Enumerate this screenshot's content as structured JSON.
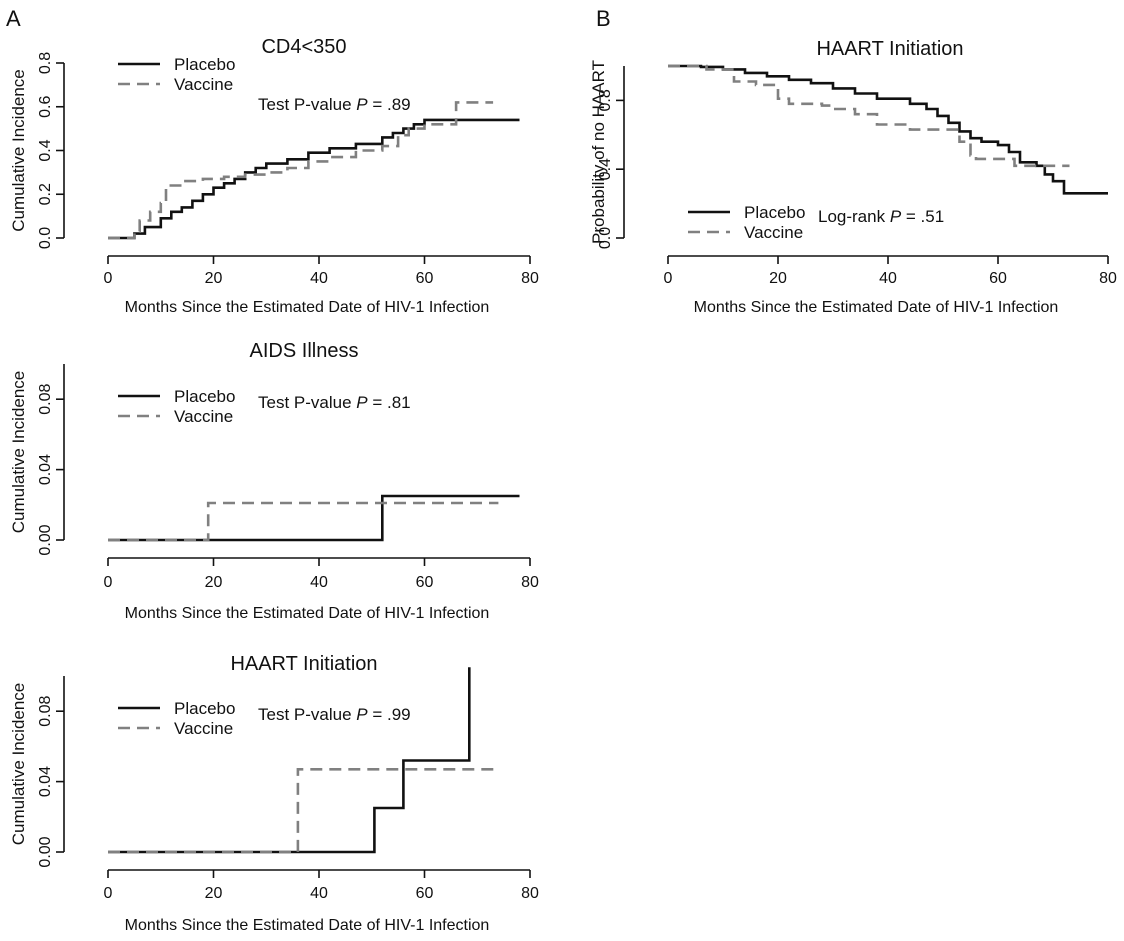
{
  "panel_labels": {
    "a": "A",
    "b": "B"
  },
  "styles": {
    "Placebo": {
      "color": "#111111",
      "dash": ""
    },
    "Vaccine": {
      "color": "#808080",
      "dash": "12,7"
    }
  },
  "chart_data": [
    {
      "id": "cd4",
      "panel": "A",
      "type": "line",
      "step": true,
      "title": "CD4<350",
      "xlabel": "Months Since the Estimated Date of HIV-1 Infection",
      "ylabel": "Cumulative Incidence",
      "xlim": [
        0,
        80
      ],
      "ylim": [
        0,
        0.8
      ],
      "xticks": [
        0,
        20,
        40,
        60,
        80
      ],
      "yticks": [
        0.0,
        0.2,
        0.4,
        0.6,
        0.8
      ],
      "ytick_labels": [
        "0.0",
        "0.2",
        "0.4",
        "0.6",
        "0.8"
      ],
      "legend": [
        "Placebo",
        "Vaccine"
      ],
      "annotation_prefix": "Test P-value ",
      "annotation_p": "P",
      "annotation_value": " = .89",
      "series": [
        {
          "name": "Placebo",
          "x": [
            0,
            5,
            7,
            10,
            12,
            14,
            16,
            18,
            20,
            22,
            24,
            26,
            28,
            30,
            34,
            38,
            42,
            47,
            52,
            54,
            56,
            58,
            60,
            78
          ],
          "y": [
            0,
            0.02,
            0.05,
            0.09,
            0.12,
            0.14,
            0.17,
            0.2,
            0.23,
            0.25,
            0.27,
            0.3,
            0.32,
            0.34,
            0.36,
            0.39,
            0.41,
            0.43,
            0.46,
            0.48,
            0.5,
            0.52,
            0.54,
            0.54
          ]
        },
        {
          "name": "Vaccine",
          "x": [
            0,
            5,
            6,
            8,
            10,
            11,
            14,
            18,
            22,
            26,
            30,
            34,
            38,
            42,
            47,
            52,
            55,
            57,
            60,
            66,
            73
          ],
          "y": [
            0,
            0.03,
            0.08,
            0.12,
            0.16,
            0.24,
            0.26,
            0.27,
            0.28,
            0.29,
            0.3,
            0.32,
            0.35,
            0.37,
            0.4,
            0.42,
            0.47,
            0.5,
            0.52,
            0.62,
            0.62
          ]
        }
      ]
    },
    {
      "id": "aids",
      "panel": "A",
      "type": "line",
      "step": true,
      "title": "AIDS Illness",
      "xlabel": "Months Since the Estimated Date of HIV-1 Infection",
      "ylabel": "Cumulative Incidence",
      "xlim": [
        0,
        80
      ],
      "ylim": [
        0,
        0.1
      ],
      "xticks": [
        0,
        20,
        40,
        60,
        80
      ],
      "yticks": [
        0.0,
        0.04,
        0.08
      ],
      "ytick_labels": [
        "0.00",
        "0.04",
        "0.08"
      ],
      "legend": [
        "Placebo",
        "Vaccine"
      ],
      "annotation_prefix": "Test P-value ",
      "annotation_p": "P",
      "annotation_value": " = .81",
      "series": [
        {
          "name": "Placebo",
          "x": [
            0,
            52,
            78
          ],
          "y": [
            0,
            0.025,
            0.025
          ]
        },
        {
          "name": "Vaccine",
          "x": [
            0,
            19,
            74
          ],
          "y": [
            0,
            0.021,
            0.021
          ]
        }
      ]
    },
    {
      "id": "haart-a",
      "panel": "A",
      "type": "line",
      "step": true,
      "title": "HAART Initiation",
      "xlabel": "Months Since the Estimated Date of HIV-1 Infection",
      "ylabel": "Cumulative Incidence",
      "xlim": [
        0,
        80
      ],
      "ylim": [
        0,
        0.1
      ],
      "xticks": [
        0,
        20,
        40,
        60,
        80
      ],
      "yticks": [
        0.0,
        0.04,
        0.08
      ],
      "ytick_labels": [
        "0.00",
        "0.04",
        "0.08"
      ],
      "legend": [
        "Placebo",
        "Vaccine"
      ],
      "annotation_prefix": "Test P-value ",
      "annotation_p": "P",
      "annotation_value": " = .99",
      "series": [
        {
          "name": "Placebo",
          "x": [
            0,
            50.5,
            56,
            68.5,
            68.5
          ],
          "y": [
            0,
            0.025,
            0.052,
            0.105,
            0.105
          ]
        },
        {
          "name": "Vaccine",
          "x": [
            0,
            36,
            74
          ],
          "y": [
            0,
            0.047,
            0.047
          ]
        }
      ]
    },
    {
      "id": "haart-b",
      "panel": "B",
      "type": "line",
      "step": true,
      "title": "HAART Initiation",
      "xlabel": "Months Since the Estimated Date of HIV-1 Infection",
      "ylabel": "Probability of no HAART",
      "xlim": [
        0,
        80
      ],
      "ylim": [
        0,
        1.0
      ],
      "xticks": [
        0,
        20,
        40,
        60,
        80
      ],
      "yticks": [
        0.0,
        0.4,
        0.8
      ],
      "ytick_labels": [
        "0.0",
        "0.4",
        "0.8"
      ],
      "legend": [
        "Placebo",
        "Vaccine"
      ],
      "annotation_prefix": "Log-rank ",
      "annotation_p": "P",
      "annotation_value": " = .51",
      "series": [
        {
          "name": "Placebo",
          "x": [
            0,
            6,
            10,
            14,
            18,
            22,
            26,
            30,
            34,
            38,
            44,
            47,
            49,
            51,
            53,
            55,
            57,
            60,
            62,
            64,
            67,
            68.5,
            70,
            72,
            80
          ],
          "y": [
            1.0,
            0.995,
            0.98,
            0.96,
            0.94,
            0.92,
            0.9,
            0.87,
            0.84,
            0.81,
            0.78,
            0.75,
            0.71,
            0.67,
            0.62,
            0.58,
            0.56,
            0.54,
            0.5,
            0.44,
            0.42,
            0.37,
            0.33,
            0.26,
            0.26
          ]
        },
        {
          "name": "Vaccine",
          "x": [
            0,
            7,
            12,
            16,
            20,
            22,
            28,
            30,
            34,
            38,
            44,
            53,
            55,
            56,
            63,
            73
          ],
          "y": [
            1.0,
            0.98,
            0.91,
            0.89,
            0.81,
            0.78,
            0.77,
            0.75,
            0.72,
            0.66,
            0.63,
            0.56,
            0.48,
            0.46,
            0.42,
            0.42
          ]
        }
      ]
    }
  ]
}
